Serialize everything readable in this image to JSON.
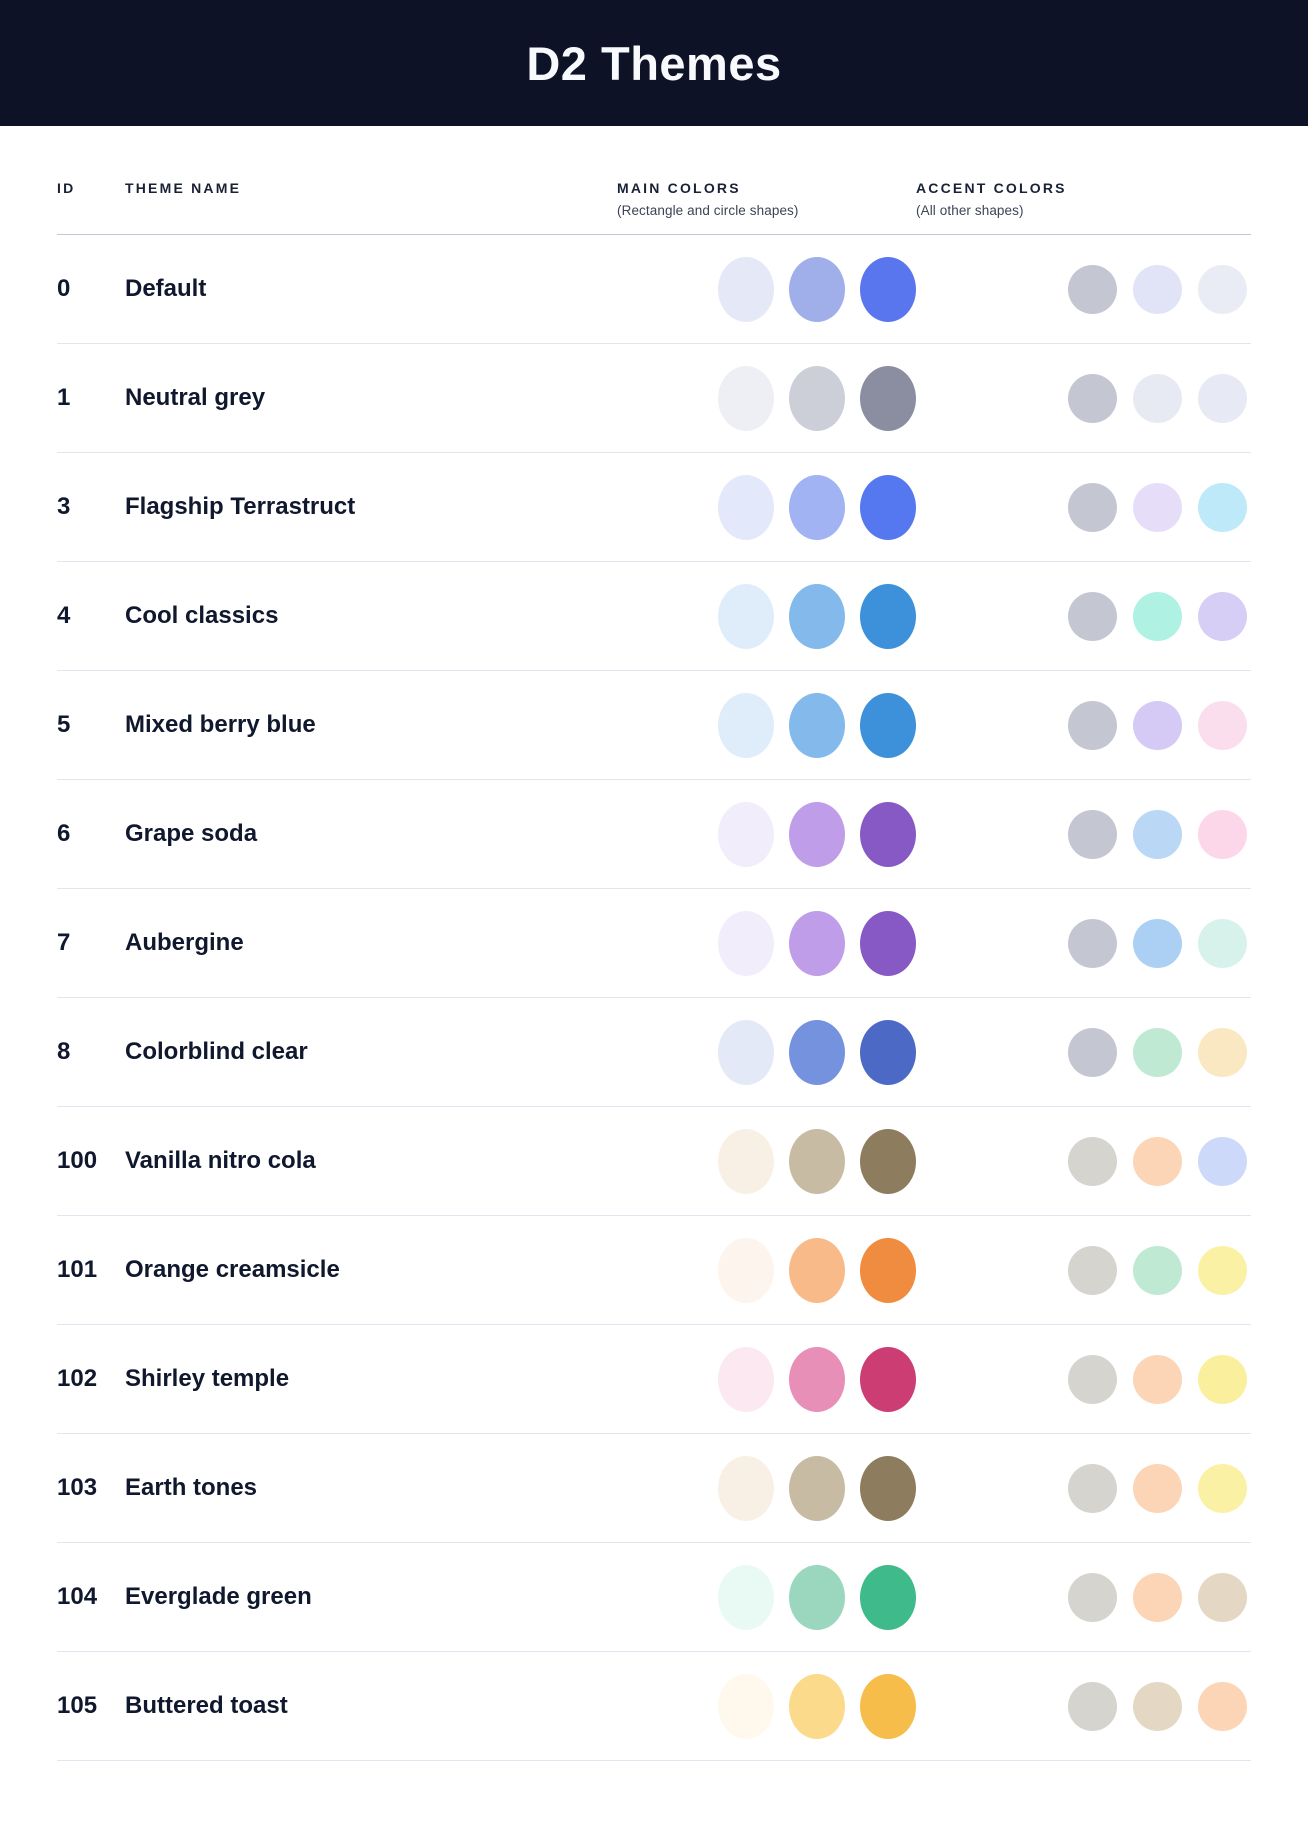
{
  "header": {
    "title": "D2 Themes",
    "background": "#0d1226"
  },
  "table": {
    "columns": {
      "id": {
        "label": "ID"
      },
      "theme_name": {
        "label": "THEME NAME"
      },
      "main_colors": {
        "label": "MAIN COLORS",
        "sublabel": "(Rectangle and circle shapes)"
      },
      "accent_colors": {
        "label": "ACCENT COLORS",
        "sublabel": "(All other shapes)"
      }
    },
    "themes": [
      {
        "id": "0",
        "name": "Default",
        "main_colors": [
          "#e5e8f7",
          "#a0aee9",
          "#5a76ee"
        ],
        "accent_colors": [
          "#c4c6d2",
          "#e1e4f6",
          "#e9ecf5"
        ]
      },
      {
        "id": "1",
        "name": "Neutral grey",
        "main_colors": [
          "#edeff4",
          "#cccfd8",
          "#8b8ea1"
        ],
        "accent_colors": [
          "#c4c6d2",
          "#e8eaf3",
          "#e7eaf4"
        ]
      },
      {
        "id": "3",
        "name": "Flagship Terrastruct",
        "main_colors": [
          "#e3e8fa",
          "#a1b3f2",
          "#5578f0"
        ],
        "accent_colors": [
          "#c4c6d2",
          "#e6def8",
          "#bde9f8"
        ]
      },
      {
        "id": "4",
        "name": "Cool classics",
        "main_colors": [
          "#dfedfa",
          "#83baeb",
          "#3d90da"
        ],
        "accent_colors": [
          "#c4c6d2",
          "#aff2e4",
          "#d6cef5"
        ]
      },
      {
        "id": "5",
        "name": "Mixed berry blue",
        "main_colors": [
          "#dfedfa",
          "#83baeb",
          "#3d90da"
        ],
        "accent_colors": [
          "#c4c6d2",
          "#d5caf6",
          "#fbdeee"
        ]
      },
      {
        "id": "6",
        "name": "Grape soda",
        "main_colors": [
          "#f2edfa",
          "#bf9de9",
          "#8659c5"
        ],
        "accent_colors": [
          "#c4c6d2",
          "#bad8f5",
          "#fbd7e9"
        ]
      },
      {
        "id": "7",
        "name": "Aubergine",
        "main_colors": [
          "#f2edfa",
          "#bf9de9",
          "#8659c5"
        ],
        "accent_colors": [
          "#c4c6d2",
          "#abd0f4",
          "#d7f1eb"
        ]
      },
      {
        "id": "8",
        "name": "Colorblind clear",
        "main_colors": [
          "#e3e9f7",
          "#7592de",
          "#4c69c6"
        ],
        "accent_colors": [
          "#c4c6d2",
          "#bfe9d2",
          "#fae8c3"
        ]
      },
      {
        "id": "100",
        "name": "Vanilla nitro cola",
        "main_colors": [
          "#f8f0e5",
          "#c8bba3",
          "#8e7c5e"
        ],
        "accent_colors": [
          "#d6d4cf",
          "#fcd5b6",
          "#cdd9f8"
        ]
      },
      {
        "id": "101",
        "name": "Orange creamsicle",
        "main_colors": [
          "#fdf4ed",
          "#f9ba89",
          "#ef8c3f"
        ],
        "accent_colors": [
          "#d6d4cf",
          "#bfe9d2",
          "#fbf1a4"
        ]
      },
      {
        "id": "102",
        "name": "Shirley temple",
        "main_colors": [
          "#fbe8f0",
          "#e88fb8",
          "#cc3d74"
        ],
        "accent_colors": [
          "#d6d4cf",
          "#fcd5b6",
          "#faef9d"
        ]
      },
      {
        "id": "103",
        "name": "Earth tones",
        "main_colors": [
          "#f8f0e5",
          "#c8bba3",
          "#8e7c5e"
        ],
        "accent_colors": [
          "#d6d4cf",
          "#fcd5b6",
          "#fbf1a4"
        ]
      },
      {
        "id": "104",
        "name": "Everglade green",
        "main_colors": [
          "#e9faf4",
          "#9bd7be",
          "#3fba8b"
        ],
        "accent_colors": [
          "#d6d4cf",
          "#fcd5b6",
          "#e4d7c3"
        ]
      },
      {
        "id": "105",
        "name": "Buttered toast",
        "main_colors": [
          "#fef9ec",
          "#fbda8c",
          "#f7bd4b"
        ],
        "accent_colors": [
          "#d6d4cf",
          "#e4d7c3",
          "#fcd5b6"
        ]
      }
    ]
  }
}
